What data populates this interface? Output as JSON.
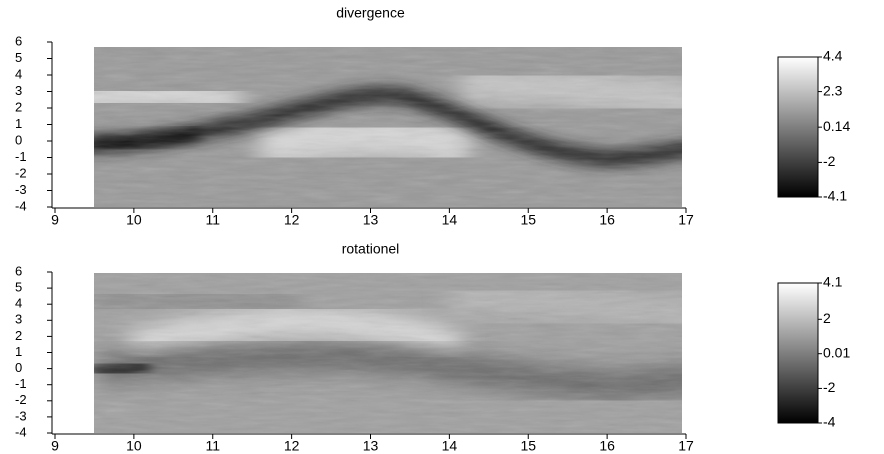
{
  "chart_data": [
    {
      "type": "heatmap",
      "title": "divergence",
      "xlim": [
        9,
        17
      ],
      "xticks": [
        9,
        10,
        11,
        12,
        13,
        14,
        15,
        16,
        17
      ],
      "ylim": [
        -4,
        6
      ],
      "yticks": [
        -4,
        -3,
        -2,
        -1,
        0,
        1,
        2,
        3,
        4,
        5,
        6
      ],
      "colormap": [
        "#000000",
        "#ffffff"
      ],
      "colorbar": {
        "lim": [
          -4.1,
          4.4
        ],
        "ticks": [
          4.4,
          2.3,
          0.14,
          -2,
          -4.1
        ]
      }
    },
    {
      "type": "heatmap",
      "title": "rotationel",
      "xlim": [
        9,
        17
      ],
      "xticks": [
        9,
        10,
        11,
        12,
        13,
        14,
        15,
        16,
        17
      ],
      "ylim": [
        -4,
        6
      ],
      "yticks": [
        -4,
        -3,
        -2,
        -1,
        0,
        1,
        2,
        3,
        4,
        5,
        6
      ],
      "colormap": [
        "#000000",
        "#ffffff"
      ],
      "colorbar": {
        "lim": [
          -4,
          4.1
        ],
        "ticks": [
          4.1,
          2,
          0.01,
          -2,
          -4
        ]
      }
    }
  ]
}
